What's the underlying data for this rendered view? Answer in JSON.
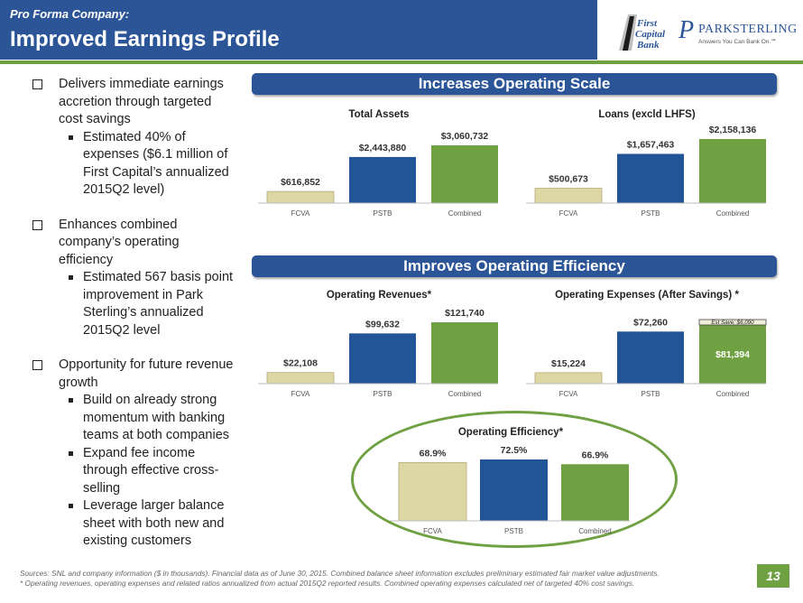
{
  "header": {
    "subtitle": "Pro Forma Company:",
    "title": "Improved Earnings Profile",
    "logo_first_capital": "First Capital Bank",
    "logo_park_sterling": "PARKSTERLING",
    "logo_park_sterling_tagline": "Answers You Can Bank On.℠"
  },
  "bullets": [
    {
      "text": "Delivers immediate earnings accretion through targeted cost savings",
      "subs": [
        "Estimated 40% of expenses ($6.1 million of First Capital’s annualized 2015Q2 level)"
      ]
    },
    {
      "text": "Enhances combined company’s operating efficiency",
      "subs": [
        "Estimated 567 basis point improvement in Park Sterling’s annualized 2015Q2 level"
      ]
    },
    {
      "text": "Opportunity for future revenue growth",
      "subs": [
        "Build on already strong momentum with banking teams at both companies",
        "Expand fee income through effective cross-selling",
        "Leverage larger balance sheet with both new and existing customers"
      ]
    }
  ],
  "banners": {
    "scale": "Increases Operating Scale",
    "efficiency": "Improves Operating Efficiency"
  },
  "colors": {
    "fcva": "#ddd7a3",
    "pstb": "#225597",
    "combined": "#6fa143",
    "savings": "#eeeed8",
    "accent": "#2b5597"
  },
  "chart_data": [
    {
      "type": "bar",
      "title": "Total Assets",
      "categories": [
        "FCVA",
        "PSTB",
        "Combined"
      ],
      "values": [
        616852,
        2443880,
        3060732
      ],
      "labels": [
        "$616,852",
        "$2,443,880",
        "$3,060,732"
      ]
    },
    {
      "type": "bar",
      "title": "Loans (excld LHFS)",
      "categories": [
        "FCVA",
        "PSTB",
        "Combined"
      ],
      "values": [
        500673,
        1657463,
        2158136
      ],
      "labels": [
        "$500,673",
        "$1,657,463",
        "$2,158,136"
      ]
    },
    {
      "type": "bar",
      "title": "Operating Revenues*",
      "categories": [
        "FCVA",
        "PSTB",
        "Combined"
      ],
      "values": [
        22108,
        99632,
        121740
      ],
      "labels": [
        "$22,108",
        "$99,632",
        "$121,740"
      ]
    },
    {
      "type": "bar",
      "title": "Operating Expenses (After Savings) *",
      "categories": [
        "FCVA",
        "PSTB",
        "Combined"
      ],
      "values": [
        15224,
        72260,
        81394
      ],
      "labels": [
        "$15,224",
        "$72,260",
        "$81,394"
      ],
      "savings": {
        "value": 6090,
        "label": "Est Save: $6,090"
      }
    },
    {
      "type": "bar",
      "title": "Operating Efficiency*",
      "categories": [
        "FCVA",
        "PSTB",
        "Combined"
      ],
      "values": [
        68.9,
        72.5,
        66.9
      ],
      "labels": [
        "68.9%",
        "72.5%",
        "66.9%"
      ]
    }
  ],
  "footer": {
    "line1": "Sources: SNL and company information ($ in thousands). Financial data as of June 30, 2015. Combined balance sheet information excludes preliminary estimated fair market value adjustments.",
    "line2": "* Operating revenues, operating expenses and related ratios annualized from actual 2015Q2 reported results. Combined operating expenses calculated net of targeted 40% cost savings."
  },
  "page_number": "13"
}
